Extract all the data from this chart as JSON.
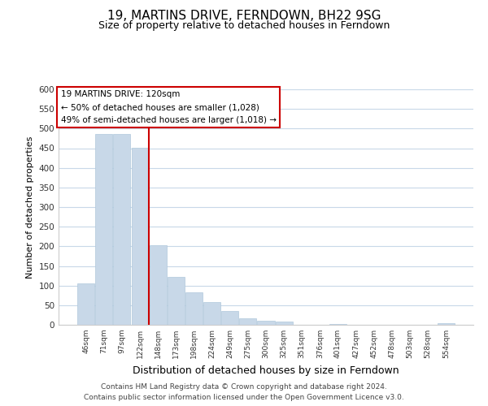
{
  "title": "19, MARTINS DRIVE, FERNDOWN, BH22 9SG",
  "subtitle": "Size of property relative to detached houses in Ferndown",
  "xlabel": "Distribution of detached houses by size in Ferndown",
  "ylabel": "Number of detached properties",
  "bar_labels": [
    "46sqm",
    "71sqm",
    "97sqm",
    "122sqm",
    "148sqm",
    "173sqm",
    "198sqm",
    "224sqm",
    "249sqm",
    "275sqm",
    "300sqm",
    "325sqm",
    "351sqm",
    "376sqm",
    "401sqm",
    "427sqm",
    "452sqm",
    "478sqm",
    "503sqm",
    "528sqm",
    "554sqm"
  ],
  "bar_values": [
    105,
    487,
    487,
    452,
    202,
    122,
    83,
    57,
    36,
    17,
    10,
    8,
    0,
    0,
    3,
    0,
    0,
    0,
    0,
    0,
    5
  ],
  "bar_color": "#c8d8e8",
  "bar_edge_color": "#b0c8dc",
  "vline_color": "#cc0000",
  "vline_x_index": 3,
  "ylim": [
    0,
    600
  ],
  "yticks": [
    0,
    50,
    100,
    150,
    200,
    250,
    300,
    350,
    400,
    450,
    500,
    550,
    600
  ],
  "annotation_title": "19 MARTINS DRIVE: 120sqm",
  "annotation_line1": "← 50% of detached houses are smaller (1,028)",
  "annotation_line2": "49% of semi-detached houses are larger (1,018) →",
  "annotation_box_color": "#ffffff",
  "annotation_box_edge": "#cc0000",
  "footer_line1": "Contains HM Land Registry data © Crown copyright and database right 2024.",
  "footer_line2": "Contains public sector information licensed under the Open Government Licence v3.0.",
  "background_color": "#ffffff",
  "grid_color": "#c8d8e8",
  "title_fontsize": 11,
  "subtitle_fontsize": 9
}
